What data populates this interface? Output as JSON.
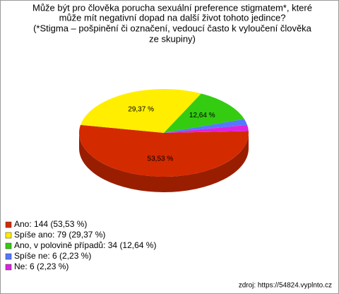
{
  "chart_data": {
    "type": "pie",
    "title": [
      "Může být pro člověka porucha sexuální preference stigmatem*, které",
      "může mít negativní dopad na další život tohoto jedince?",
      " (*Stigma – pošpinění či označení, vedoucí často k vyloučení člověka",
      "ze skupiny)"
    ],
    "categories": [
      "Ano: 144 (53,53 %)",
      "Spíše ano: 79 (29,37 %)",
      "Ano, v polovině případů: 34 (12,64 %)",
      "Spíše ne: 6 (2,23 %)",
      "Ne: 6 (2,23 %)"
    ],
    "values": [
      53.53,
      29.37,
      12.64,
      2.23,
      2.23
    ],
    "value_labels": [
      "53,53 %",
      "29,37 %",
      "12,64 %",
      null,
      null
    ],
    "colors": [
      "#d42a00",
      "#ffee00",
      "#33cc11",
      "#5577ff",
      "#dd22dd"
    ],
    "legend": "bottom-left",
    "source": "zdroj: https://54824.vyplnto.cz"
  }
}
